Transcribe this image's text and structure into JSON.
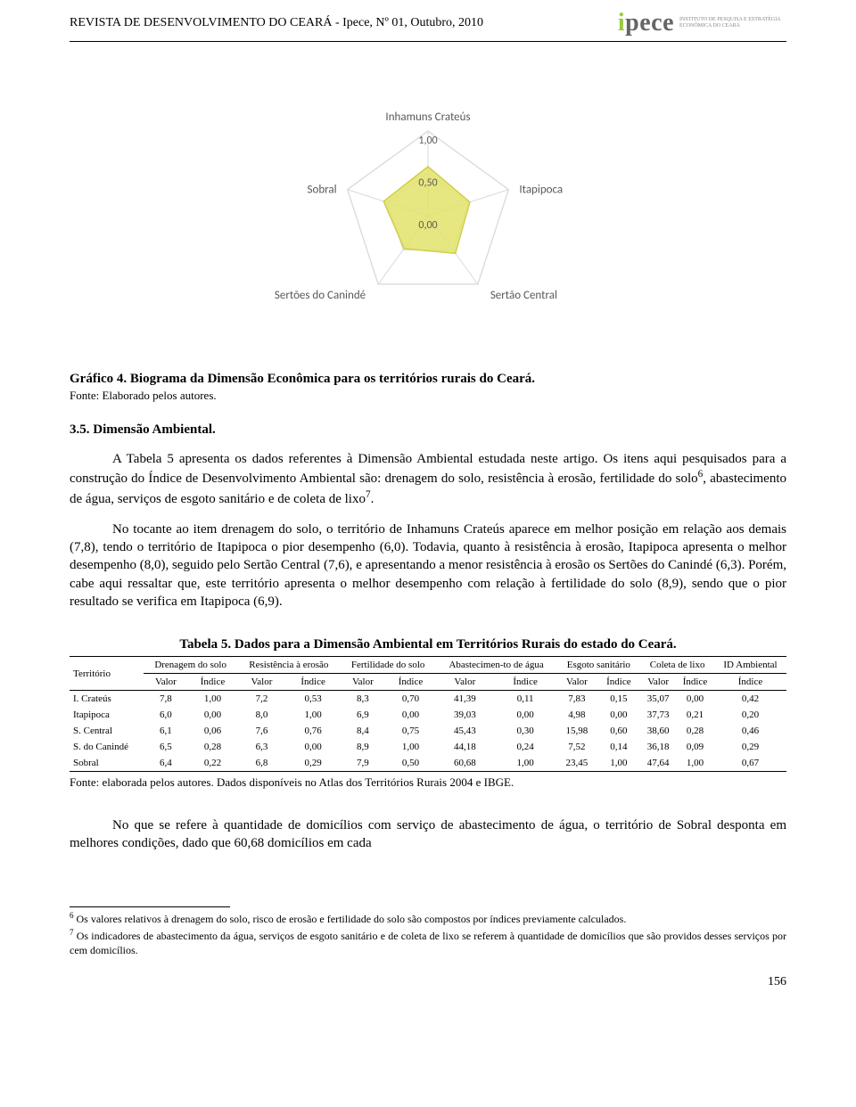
{
  "header": {
    "journal": "REVISTA DE DESENVOLVIMENTO DO CEARÁ  -  Ipece, Nº 01, Outubro, 2010",
    "logo_main": "ipece",
    "logo_sub": "INSTITUTO DE PESQUISA E ESTRATÉGIA ECONÔMICA DO CEARÁ"
  },
  "radar_chart": {
    "type": "radar",
    "axes": [
      "Inhamuns Crateús",
      "Itapipoca",
      "Sertão Central",
      "Sertões do Canindé",
      "Sobral"
    ],
    "ring_labels": [
      "1,00",
      "0,50",
      "0,00"
    ],
    "ring_values": [
      1.0,
      0.5,
      0.0
    ],
    "values": [
      0.58,
      0.52,
      0.55,
      0.48,
      0.55
    ],
    "fill_color": "#e3e36b",
    "fill_opacity": 0.85,
    "stroke_color": "#cfcf4a",
    "grid_color": "#d9d9d9",
    "axis_label_color": "#595959",
    "axis_label_fontsize": 13,
    "ring_label_fontsize": 12,
    "background_color": "#ffffff"
  },
  "caption": "Gráfico 4. Biograma da Dimensão Econômica para os territórios rurais do Ceará.",
  "caption_source": "Fonte: Elaborado pelos autores.",
  "section_heading": "3.5. Dimensão Ambiental.",
  "para1": "A Tabela 5 apresenta os dados referentes à Dimensão Ambiental estudada neste artigo. Os itens aqui pesquisados para a construção do Índice de Desenvolvimento Ambiental são: drenagem do solo, resistência à erosão, fertilidade do solo",
  "para1_sup": "6",
  "para1_cont": ", abastecimento de água, serviços de esgoto sanitário e de coleta de lixo",
  "para1_sup2": "7",
  "para1_end": ".",
  "para2": "No tocante ao item drenagem do solo, o território de Inhamuns Crateús aparece em melhor posição em relação aos demais (7,8), tendo o território de Itapipoca o pior desempenho (6,0). Todavia, quanto à resistência à erosão, Itapipoca apresenta o melhor desempenho (8,0), seguido pelo Sertão Central (7,6), e apresentando a menor resistência à erosão os Sertões do Canindé (6,3). Porém, cabe aqui ressaltar que, este território apresenta o melhor desempenho com relação à fertilidade do solo (8,9), sendo que o pior resultado se verifica em Itapipoca (6,9).",
  "table_title": "Tabela 5. Dados para a Dimensão Ambiental em Territórios Rurais do estado do Ceará.",
  "table": {
    "col_groups": [
      "Território",
      "Drenagem do solo",
      "Resistência à erosão",
      "Fertilidade do solo",
      "Abastecimen-to de água",
      "Esgoto sanitário",
      "Coleta de lixo",
      "ID Ambiental"
    ],
    "sub_headers": [
      "Valor",
      "Índice"
    ],
    "last_sub": "Índice",
    "rows": [
      {
        "label": "I. Crateús",
        "cells": [
          "7,8",
          "1,00",
          "7,2",
          "0,53",
          "8,3",
          "0,70",
          "41,39",
          "0,11",
          "7,83",
          "0,15",
          "35,07",
          "0,00",
          "0,42"
        ]
      },
      {
        "label": "Itapipoca",
        "cells": [
          "6,0",
          "0,00",
          "8,0",
          "1,00",
          "6,9",
          "0,00",
          "39,03",
          "0,00",
          "4,98",
          "0,00",
          "37,73",
          "0,21",
          "0,20"
        ]
      },
      {
        "label": "S. Central",
        "cells": [
          "6,1",
          "0,06",
          "7,6",
          "0,76",
          "8,4",
          "0,75",
          "45,43",
          "0,30",
          "15,98",
          "0,60",
          "38,60",
          "0,28",
          "0,46"
        ]
      },
      {
        "label": "S. do Canindé",
        "cells": [
          "6,5",
          "0,28",
          "6,3",
          "0,00",
          "8,9",
          "1,00",
          "44,18",
          "0,24",
          "7,52",
          "0,14",
          "36,18",
          "0,09",
          "0,29"
        ]
      },
      {
        "label": "Sobral",
        "cells": [
          "6,4",
          "0,22",
          "6,8",
          "0,29",
          "7,9",
          "0,50",
          "60,68",
          "1,00",
          "23,45",
          "1,00",
          "47,64",
          "1,00",
          "0,67"
        ]
      }
    ]
  },
  "table_source": "Fonte: elaborada pelos autores. Dados disponíveis no Atlas dos Territórios Rurais 2004 e IBGE.",
  "para3": "No que se refere à quantidade de domicílios com serviço de abastecimento de água, o território de Sobral desponta em melhores condições, dado que 60,68 domicílios em cada",
  "footnote6_num": "6",
  "footnote6": " Os valores relativos à drenagem do solo, risco de erosão e fertilidade do solo são compostos por índices previamente calculados.",
  "footnote7_num": "7",
  "footnote7": " Os indicadores de abastecimento da água, serviços de esgoto sanitário e de coleta de lixo se referem à quantidade de domicílios que são providos desses serviços por cem domicílios.",
  "page_number": "156"
}
